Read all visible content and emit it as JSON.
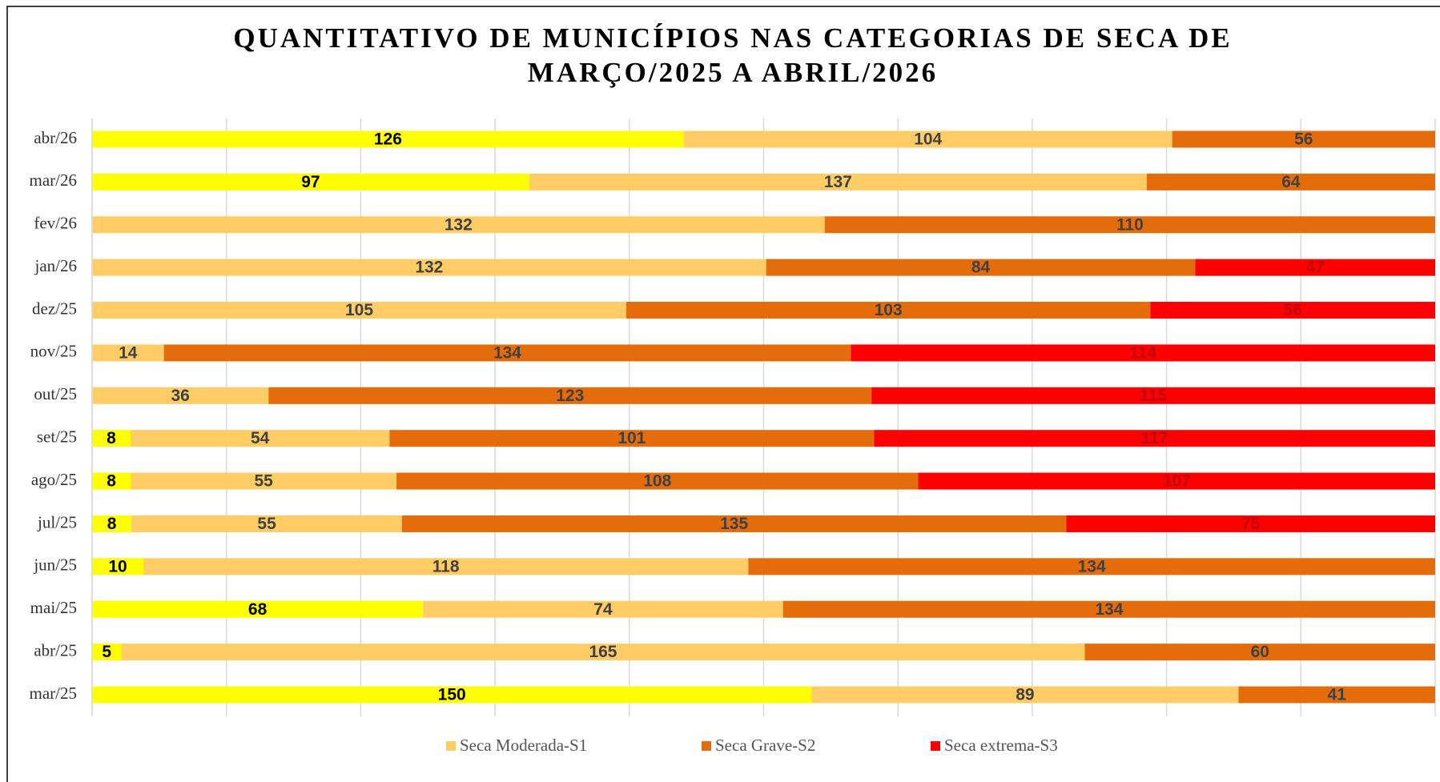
{
  "chart_data": {
    "type": "stacked-bar-100-horizontal",
    "title": "QUANTITATIVO DE MUNICÍPIOS NAS CATEGORIAS DE SECA DE",
    "subtitle": "MARÇO/2025 A ABRIL/2026",
    "categories": [
      "mar/25",
      "abr/25",
      "mai/25",
      "jun/25",
      "jul/25",
      "ago/25",
      "set/25",
      "out/25",
      "nov/25",
      "dez/25",
      "jan/26",
      "fev/26",
      "mar/26",
      "abr/26"
    ],
    "series": [
      {
        "color": "#ffff00",
        "label_color": "#000000",
        "values": [
          150,
          5,
          68,
          10,
          8,
          8,
          8,
          null,
          null,
          null,
          null,
          null,
          97,
          126
        ]
      },
      {
        "name": "Seca Moderada-S1",
        "color": "#ffcc66",
        "label_color": "#404040",
        "values": [
          89,
          165,
          74,
          118,
          55,
          55,
          54,
          36,
          14,
          105,
          132,
          132,
          137,
          104
        ]
      },
      {
        "name": "Seca Grave-S2",
        "color": "#e46c0a",
        "label_color": "#404040",
        "values": [
          41,
          60,
          134,
          134,
          135,
          108,
          101,
          123,
          134,
          103,
          84,
          110,
          64,
          56
        ]
      },
      {
        "name": "Seca extrema-S3",
        "color": "#ff0000",
        "label_color": "#c00000",
        "values": [
          null,
          null,
          null,
          null,
          75,
          107,
          117,
          115,
          114,
          56,
          47,
          null,
          null,
          null
        ]
      }
    ],
    "xlim": [
      0,
      100
    ],
    "xticks": [
      0,
      10,
      20,
      30,
      40,
      50,
      60,
      70,
      80,
      90,
      100
    ],
    "grid": true
  }
}
